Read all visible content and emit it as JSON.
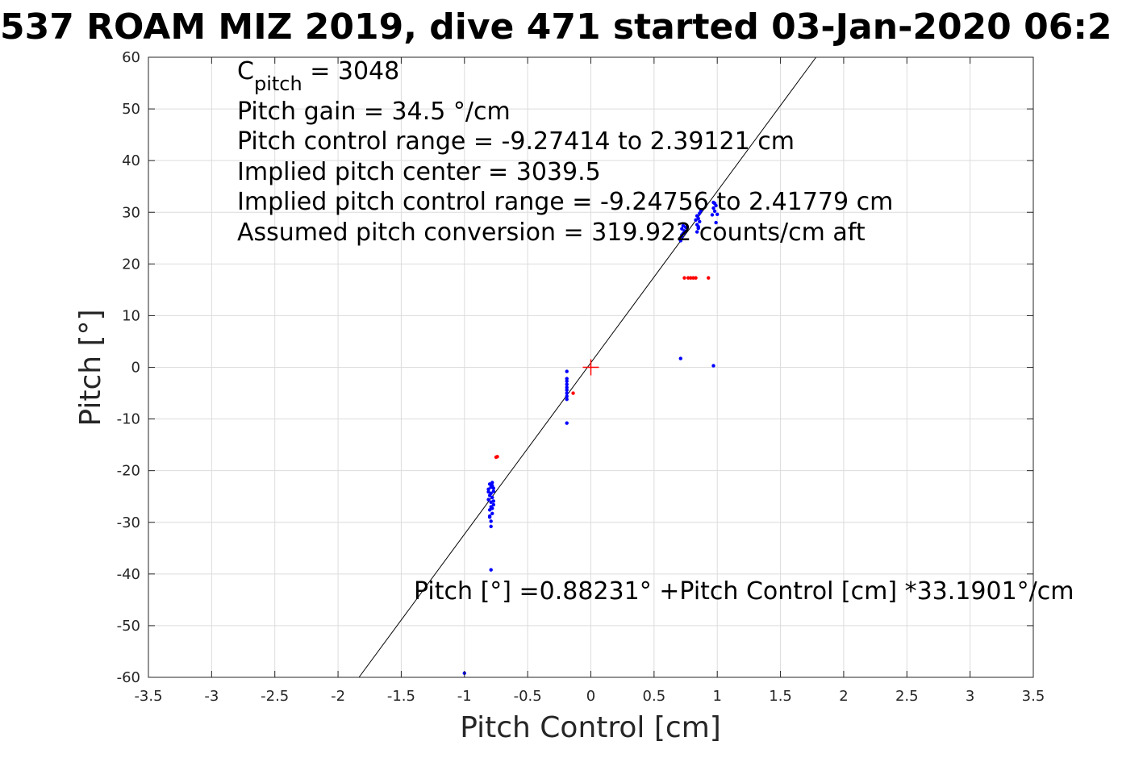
{
  "chart_data": {
    "type": "scatter",
    "title": "537 ROAM MIZ 2019, dive 471 started 03-Jan-2020 06:2",
    "xlabel": "Pitch Control [cm]",
    "ylabel": "Pitch [°]",
    "xlim": [
      -3.5,
      3.5
    ],
    "ylim": [
      -60,
      60
    ],
    "xticks": [
      "-3.5",
      "-3",
      "-2.5",
      "-2",
      "-1.5",
      "-1",
      "-0.5",
      "0",
      "0.5",
      "1",
      "1.5",
      "2",
      "2.5",
      "3",
      "3.5"
    ],
    "yticks": [
      "60",
      "50",
      "40",
      "30",
      "20",
      "10",
      "0",
      "-10",
      "-20",
      "-30",
      "-40",
      "-50",
      "-60"
    ],
    "grid": true,
    "annotations": {
      "c_pitch_symbol": "C",
      "c_pitch_subscript": "pitch",
      "c_pitch_value": " = 3048",
      "pitch_gain": "Pitch gain = 34.5 °/cm",
      "pitch_control_range": "Pitch control range = -9.27414 to 2.39121 cm",
      "implied_pitch_center": "Implied pitch center = 3039.5",
      "implied_pitch_control_range": "Implied pitch control range = -9.24756 to 2.41779 cm",
      "assumed_pitch_conversion": "Assumed pitch conversion = 319.922 counts/cm aft",
      "fit_equation": "Pitch [°] =0.88231° +Pitch Control [cm] *33.1901°/cm"
    },
    "fit_line": {
      "intercept": 0.88231,
      "slope": 33.1901,
      "color": "#000000"
    },
    "center_marker": {
      "x": 0,
      "y": 0,
      "color": "#ff0000"
    },
    "series": [
      {
        "color": "#0000ff",
        "points": [
          [
            -1.0,
            -59.2
          ],
          [
            -0.79,
            -39.2
          ],
          [
            -0.79,
            -30.8
          ],
          [
            -0.79,
            -29.8
          ],
          [
            -0.8,
            -29.0
          ],
          [
            -0.78,
            -28.3
          ],
          [
            -0.8,
            -27.6
          ],
          [
            -0.79,
            -27.0
          ],
          [
            -0.77,
            -26.6
          ],
          [
            -0.79,
            -26.1
          ],
          [
            -0.81,
            -25.6
          ],
          [
            -0.78,
            -25.2
          ],
          [
            -0.8,
            -24.8
          ],
          [
            -0.79,
            -24.4
          ],
          [
            -0.77,
            -24.0
          ],
          [
            -0.81,
            -23.6
          ],
          [
            -0.79,
            -23.2
          ],
          [
            -0.78,
            -22.9
          ],
          [
            -0.8,
            -22.6
          ],
          [
            -0.78,
            -22.3
          ],
          [
            -0.8,
            -28.8
          ],
          [
            -0.78,
            -27.3
          ],
          [
            -0.77,
            -25.9
          ],
          [
            -0.81,
            -24.1
          ],
          [
            -0.77,
            -23.4
          ],
          [
            -0.19,
            -10.8
          ],
          [
            -0.19,
            -6.2
          ],
          [
            -0.19,
            -5.6
          ],
          [
            -0.19,
            -5.0
          ],
          [
            -0.19,
            -4.4
          ],
          [
            -0.19,
            -3.9
          ],
          [
            -0.19,
            -3.3
          ],
          [
            -0.19,
            -2.7
          ],
          [
            -0.19,
            -2.2
          ],
          [
            -0.19,
            -0.8
          ],
          [
            0.71,
            1.7
          ],
          [
            0.97,
            0.3
          ],
          [
            0.71,
            24.5
          ],
          [
            0.72,
            25.3
          ],
          [
            0.73,
            25.9
          ],
          [
            0.74,
            26.4
          ],
          [
            0.72,
            26.8
          ],
          [
            0.75,
            27.1
          ],
          [
            0.73,
            27.4
          ],
          [
            0.76,
            27.2
          ],
          [
            0.74,
            26.0
          ],
          [
            0.72,
            25.6
          ],
          [
            0.84,
            26.2
          ],
          [
            0.85,
            26.9
          ],
          [
            0.84,
            27.6
          ],
          [
            0.86,
            28.2
          ],
          [
            0.85,
            28.8
          ],
          [
            0.84,
            29.3
          ],
          [
            0.86,
            29.8
          ],
          [
            0.87,
            30.3
          ],
          [
            0.85,
            27.2
          ],
          [
            0.83,
            28.5
          ],
          [
            0.96,
            29.5
          ],
          [
            0.98,
            30.2
          ],
          [
            0.97,
            30.8
          ],
          [
            0.99,
            31.3
          ],
          [
            0.98,
            31.7
          ],
          [
            1.0,
            29.6
          ],
          [
            0.97,
            31.9
          ],
          [
            0.99,
            28.0
          ]
        ]
      },
      {
        "color": "#ff0000",
        "points": [
          [
            -0.74,
            -17.3
          ],
          [
            -0.75,
            -17.4
          ],
          [
            -0.14,
            -5.0
          ],
          [
            0.74,
            17.3
          ],
          [
            0.77,
            17.3
          ],
          [
            0.79,
            17.3
          ],
          [
            0.81,
            17.3
          ],
          [
            0.83,
            17.3
          ],
          [
            0.93,
            17.3
          ]
        ]
      }
    ]
  }
}
